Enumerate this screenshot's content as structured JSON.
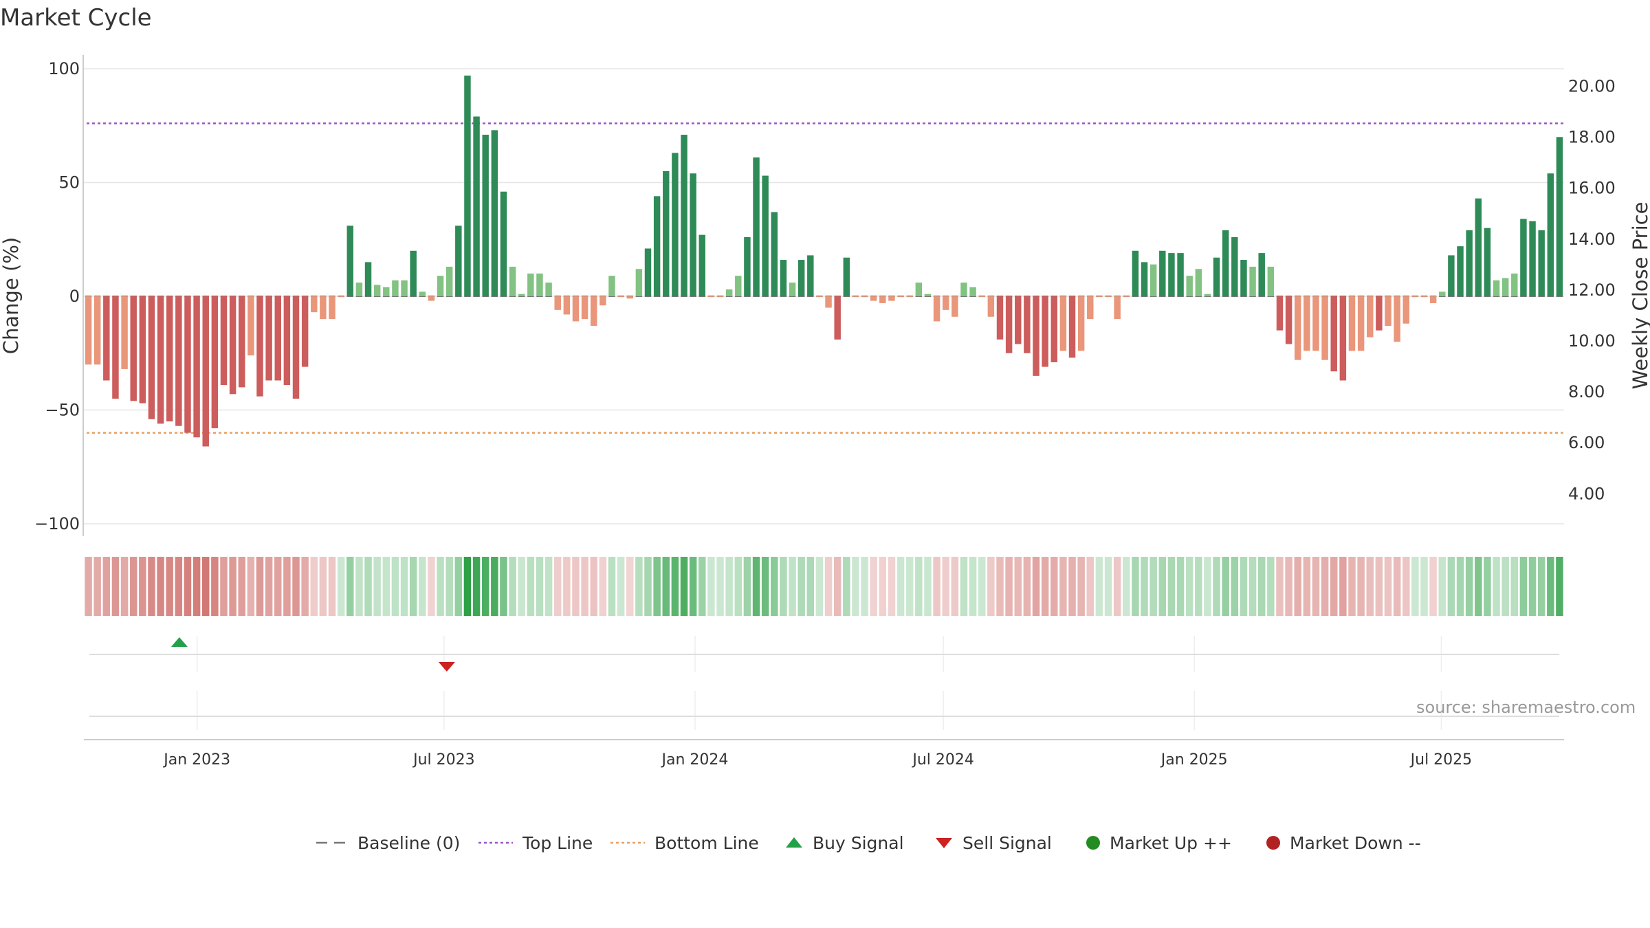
{
  "title": "Market Cycle",
  "source": "source: sharemaestro.com",
  "colors": {
    "strong_up": "#2e8b57",
    "up": "#82c282",
    "strong_down": "#cd5c5c",
    "down": "#e9967a",
    "top_line": "#9a55c8",
    "bottom_line": "#e8a060",
    "baseline": "#777777",
    "buy": "#22a04a",
    "sell": "#cc2222",
    "market_up": "#228b22",
    "market_down": "#b22222"
  },
  "legend": [
    {
      "label": "Baseline (0)",
      "marker": "dash-line-icon",
      "color": "#777777"
    },
    {
      "label": "Top Line",
      "marker": "dotted-line-icon",
      "color": "#9a55c8"
    },
    {
      "label": "Bottom Line",
      "marker": "dotted-line-icon",
      "color": "#e8a060"
    },
    {
      "label": "Buy Signal",
      "marker": "triangle-up-icon",
      "color": "#22a04a"
    },
    {
      "label": "Sell Signal",
      "marker": "triangle-down-icon",
      "color": "#cc2222"
    },
    {
      "label": "Market Up ++",
      "marker": "circle-icon",
      "color": "#228b22"
    },
    {
      "label": "Market Down --",
      "marker": "circle-icon",
      "color": "#b22222"
    }
  ],
  "chart_data": {
    "type": "bar",
    "ylabel": "Change (%)",
    "y2label": "Weekly Close Price",
    "ylim": [
      -100,
      100
    ],
    "yticks": [
      100,
      50,
      0,
      -50,
      -100
    ],
    "y2lim": [
      2.82,
      20.69
    ],
    "y2ticks": [
      "20.00",
      "18.00",
      "16.00",
      "14.00",
      "12.00",
      "10.00",
      "8.00",
      "6.00",
      "4.00"
    ],
    "top_line": 76,
    "bottom_line": -60,
    "x_start": "2022-10-10",
    "x_end": "2025-09-29",
    "x_ticks": [
      {
        "date": "2023-01-01",
        "label": "Jan 2023"
      },
      {
        "date": "2023-07-01",
        "label": "Jul 2023"
      },
      {
        "date": "2024-01-01",
        "label": "Jan 2024"
      },
      {
        "date": "2024-07-01",
        "label": "Jul 2024"
      },
      {
        "date": "2025-01-01",
        "label": "Jan 2025"
      },
      {
        "date": "2025-07-01",
        "label": "Jul 2025"
      }
    ],
    "values": [
      -30,
      -30,
      -37,
      -45,
      -32,
      -46,
      -47,
      -54,
      -56,
      -55,
      -57,
      -60,
      -62,
      -66,
      -58,
      -39,
      -43,
      -40,
      -26,
      -44,
      -37,
      -37,
      -39,
      -45,
      -31,
      -7,
      -10,
      -10,
      0,
      31,
      6,
      15,
      5,
      4,
      7,
      7,
      20,
      2,
      -2,
      9,
      13,
      31,
      97,
      79,
      71,
      73,
      46,
      13,
      1,
      10,
      10,
      6,
      -6,
      -8,
      -11,
      -10,
      -13,
      -4,
      9,
      0,
      -1,
      12,
      21,
      44,
      55,
      63,
      71,
      54,
      27,
      0,
      0,
      3,
      9,
      26,
      61,
      53,
      37,
      16,
      6,
      16,
      18,
      0,
      -5,
      -19,
      17,
      0,
      0,
      -2,
      -3,
      -2,
      0,
      0,
      6,
      1,
      -11,
      -6,
      -9,
      6,
      4,
      0,
      -9,
      -19,
      -25,
      -21,
      -25,
      -35,
      -31,
      -29,
      -24,
      -27,
      -24,
      -10,
      0,
      0,
      -10,
      0,
      20,
      15,
      14,
      20,
      19,
      19,
      9,
      12,
      1,
      17,
      29,
      26,
      16,
      13,
      19,
      13,
      -15,
      -21,
      -28,
      -24,
      -24,
      -28,
      -33,
      -37,
      -24,
      -24,
      -18,
      -15,
      -13,
      -20,
      -12,
      0,
      0,
      -3,
      2,
      18,
      22,
      29,
      43,
      30,
      7,
      8,
      10,
      34,
      33,
      29,
      54,
      70
    ],
    "signals": [
      {
        "type": "buy",
        "date": "2022-12-19"
      },
      {
        "type": "sell",
        "date": "2023-07-03"
      }
    ]
  }
}
